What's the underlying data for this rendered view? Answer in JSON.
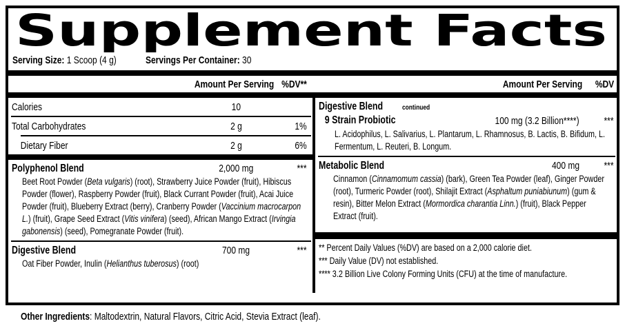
{
  "colors": {
    "ink": "#000000",
    "paper": "#ffffff"
  },
  "title": "Supplement Facts",
  "serving": {
    "size_label": "Serving Size:",
    "size_value": " 1 Scoop (4 g)",
    "container_label": "Servings Per Container:",
    "container_value": " 30"
  },
  "columns": {
    "left": {
      "header": {
        "amount": "Amount Per Serving",
        "dv": "%DV**"
      },
      "rows": [
        {
          "name": "Calories",
          "amount": "10",
          "dv": ""
        },
        {
          "name": "Total Carbohydrates",
          "amount": "2 g",
          "dv": "1%"
        },
        {
          "name": "Dietary Fiber",
          "amount": "2 g",
          "dv": "6%"
        }
      ],
      "blends": [
        {
          "name": "Polyphenol Blend",
          "amount": "2,000 mg",
          "dv": "***",
          "description": [
            {
              "text": "Beet Root Powder ("
            },
            {
              "text": "Beta vulgaris",
              "italic": true
            },
            {
              "text": ") (root), Strawberry Juice Powder (fruit), Hibiscus Powder (flower), Raspberry Powder (fruit), Black Currant Powder (fruit), Acai Juice Powder (fruit), Blueberry Extract (berry), Cranberry Powder ("
            },
            {
              "text": "Vaccinium macrocarpon L.",
              "italic": true
            },
            {
              "text": ") (fruit), Grape Seed Extract ("
            },
            {
              "text": "Vitis vinifera",
              "italic": true
            },
            {
              "text": ")  (seed), African Mango Extract ("
            },
            {
              "text": "Irvingia gabonensis",
              "italic": true
            },
            {
              "text": ") (seed), Pomegranate Powder (fruit)."
            }
          ]
        },
        {
          "name": "Digestive Blend",
          "amount": "700 mg",
          "dv": "***",
          "description": [
            {
              "text": "Oat Fiber Powder, Inulin ("
            },
            {
              "text": "Helianthus tuberosus",
              "italic": true
            },
            {
              "text": ") (root)"
            }
          ]
        }
      ]
    },
    "right": {
      "header": {
        "amount": "Amount Per Serving",
        "dv": "%DV"
      },
      "continued": {
        "name": "Digestive Blend",
        "note": "continued"
      },
      "probiotic": {
        "name": "9 Strain Probiotic",
        "amount": "100 mg (3.2 Billion****)",
        "dv": "***",
        "description": [
          {
            "text": "L. Acidophilus, L. Salivarius, L. Plantarum, L. Rhamnosus, B. Lactis, B. Bifidum, L. Fermentum, L. Reuteri, B. Longum."
          }
        ]
      },
      "metabolic": {
        "name": "Metabolic Blend",
        "amount": "400 mg",
        "dv": "***",
        "description": [
          {
            "text": "Cinnamon ("
          },
          {
            "text": "Cinnamomum cassia",
            "italic": true
          },
          {
            "text": ") (bark), Green Tea Powder (leaf), Ginger Powder (root), Turmeric Powder (root), Shilajit Extract ("
          },
          {
            "text": "Asphaltum puniabiunum",
            "italic": true
          },
          {
            "text": ") (gum & resin), Bitter Melon Extract ("
          },
          {
            "text": "Mormordica charantia Linn.",
            "italic": true
          },
          {
            "text": ") (fruit), Black Pepper Extract (fruit)."
          }
        ]
      },
      "footnotes": [
        "** Percent Daily Values (%DV) are based on a 2,000 calorie diet.",
        "*** Daily Value (DV) not established.",
        "**** 3.2 Billion Live Colony Forming Units (CFU) at the time of manufacture."
      ]
    }
  },
  "other_ingredients": {
    "label": "Other Ingredients",
    "text": ": Maltodextrin, Natural Flavors, Citric Acid, Stevia Extract (leaf)."
  }
}
